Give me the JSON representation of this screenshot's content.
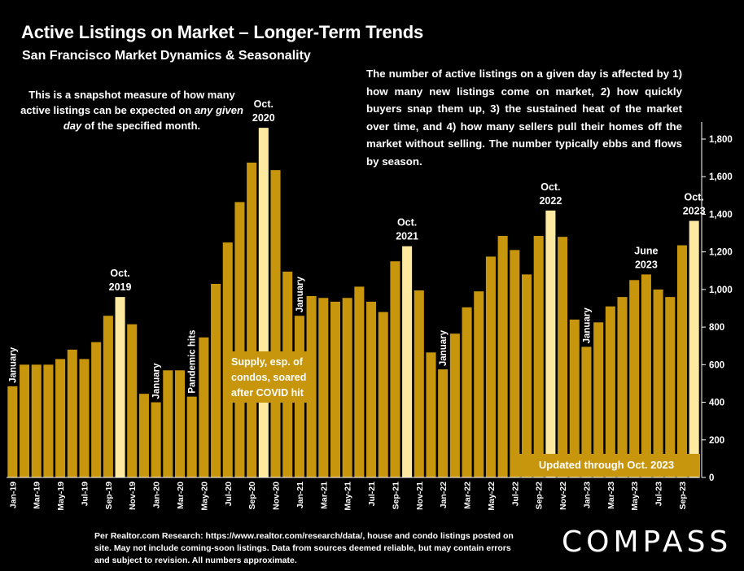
{
  "header": {
    "title": "Active Listings on Market – Longer-Term Trends",
    "subtitle": "San Francisco Market Dynamics & Seasonality"
  },
  "notes": {
    "left_pre": "This is a snapshot measure of how many active listings can be expected on ",
    "left_em": "any given day",
    "left_post": " of the specified month.",
    "right": "The number of active listings on a given day is affected by 1) how many new listings come on market, 2) how quickly buyers snap them up, 3) the sustained heat of the market over time, and 4) how many sellers pull their homes off the market without selling. The number typically ebbs and flows by season.",
    "supply_box": "Supply, esp. of condos, soared after COVID hit",
    "updated_box": "Updated through Oct. 2023"
  },
  "footer": {
    "source": "Per Realtor.com Research:  https://www.realtor.com/research/data/, house and condo listings posted on site. May not include coming-soon listings. Data from sources deemed reliable, but may contain errors and subject to revision. All numbers approximate.",
    "logo": "COMPASS"
  },
  "chart_data": {
    "type": "bar",
    "ylim": [
      0,
      1900
    ],
    "yticks": [
      "0",
      "200",
      "400",
      "600",
      "800",
      "1,000",
      "1,200",
      "1,400",
      "1,600",
      "1,800"
    ],
    "ytick_values": [
      0,
      200,
      400,
      600,
      800,
      1000,
      1200,
      1400,
      1600,
      1800
    ],
    "grid": false,
    "colors": {
      "bar": "#c8960c",
      "highlight": "#fde9a0",
      "background": "#000000"
    },
    "x_tick_labels": [
      "Jan-19",
      "Mar-19",
      "May-19",
      "Jul-19",
      "Sep-19",
      "Nov-19",
      "Jan-20",
      "Mar-20",
      "May-20",
      "Jul-20",
      "Sep-20",
      "Nov-20",
      "Jan-21",
      "Mar-21",
      "May-21",
      "Jul-21",
      "Sep-21",
      "Nov-21",
      "Jan-22",
      "Mar-22",
      "May-22",
      "Jul-22",
      "Sep-22",
      "Nov-22",
      "Jan-23",
      "Mar-23",
      "May-23",
      "Jul-23",
      "Sep-23"
    ],
    "values": [
      485,
      600,
      600,
      600,
      630,
      680,
      630,
      720,
      860,
      960,
      815,
      445,
      400,
      570,
      570,
      430,
      745,
      1030,
      1250,
      1465,
      1675,
      1860,
      1635,
      1095,
      860,
      965,
      955,
      935,
      955,
      1015,
      935,
      880,
      1150,
      1230,
      995,
      665,
      575,
      765,
      905,
      990,
      1175,
      1285,
      1210,
      1080,
      1285,
      1420,
      1280,
      840,
      695,
      825,
      910,
      960,
      1050,
      1080,
      1000,
      960,
      1235,
      1365
    ],
    "highlighted": [
      9,
      21,
      33,
      45,
      57
    ],
    "annotations": [
      {
        "index": 0,
        "text": "January",
        "rotated": true
      },
      {
        "index": 9,
        "lines": [
          "Oct.",
          "2019"
        ]
      },
      {
        "index": 12,
        "text": "January",
        "rotated": true
      },
      {
        "index": 15,
        "text": "Pandemic hits",
        "rotated": true
      },
      {
        "index": 21,
        "lines": [
          "Oct.",
          "2020"
        ]
      },
      {
        "index": 24,
        "text": "January",
        "rotated": true
      },
      {
        "index": 33,
        "lines": [
          "Oct.",
          "2021"
        ]
      },
      {
        "index": 36,
        "text": "January",
        "rotated": true
      },
      {
        "index": 45,
        "lines": [
          "Oct.",
          "2022"
        ]
      },
      {
        "index": 48,
        "text": "January",
        "rotated": true
      },
      {
        "index": 53,
        "lines": [
          "June",
          "2023"
        ]
      },
      {
        "index": 57,
        "lines": [
          "Oct.",
          "2023"
        ]
      }
    ]
  }
}
